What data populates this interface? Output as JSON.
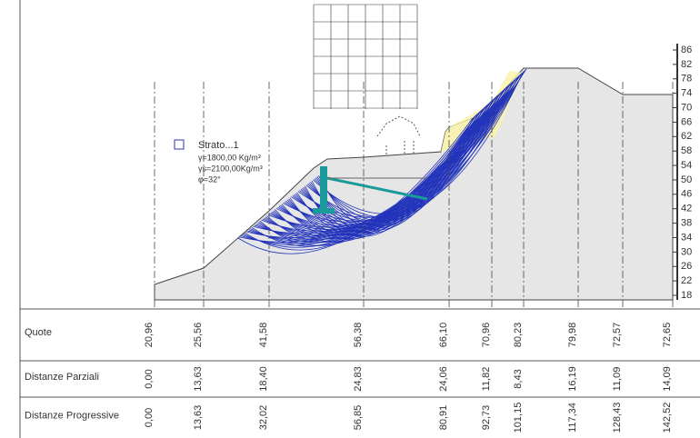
{
  "legend": {
    "name": "Strato...1",
    "gamma": "γ=1800,00 Kg/m³",
    "gamma_s": "γs=2100,00Kg/m³",
    "phi": "φ=32°"
  },
  "scale": [
    "86",
    "82",
    "78",
    "74",
    "70",
    "66",
    "62",
    "58",
    "54",
    "50",
    "46",
    "42",
    "38",
    "34",
    "30",
    "26",
    "22",
    "18"
  ],
  "table": {
    "rows": [
      {
        "label": "Quote",
        "values": [
          "20,96",
          "25,56",
          "41,58",
          "56,38",
          "66,10",
          "70,96",
          "80,23",
          "79,98",
          "72,57",
          "72,65"
        ]
      },
      {
        "label": "Distanze Parziali",
        "values": [
          "0,00",
          "13,63",
          "18,40",
          "24,83",
          "24,06",
          "11,82",
          "8,43",
          "16,19",
          "11,09",
          "14,09"
        ]
      },
      {
        "label": "Distanze Progressive",
        "values": [
          "0,00",
          "13,63",
          "32,02",
          "56,85",
          "80,91",
          "92,73",
          "101,15",
          "117,34",
          "128,43",
          "142,52"
        ]
      }
    ]
  }
}
